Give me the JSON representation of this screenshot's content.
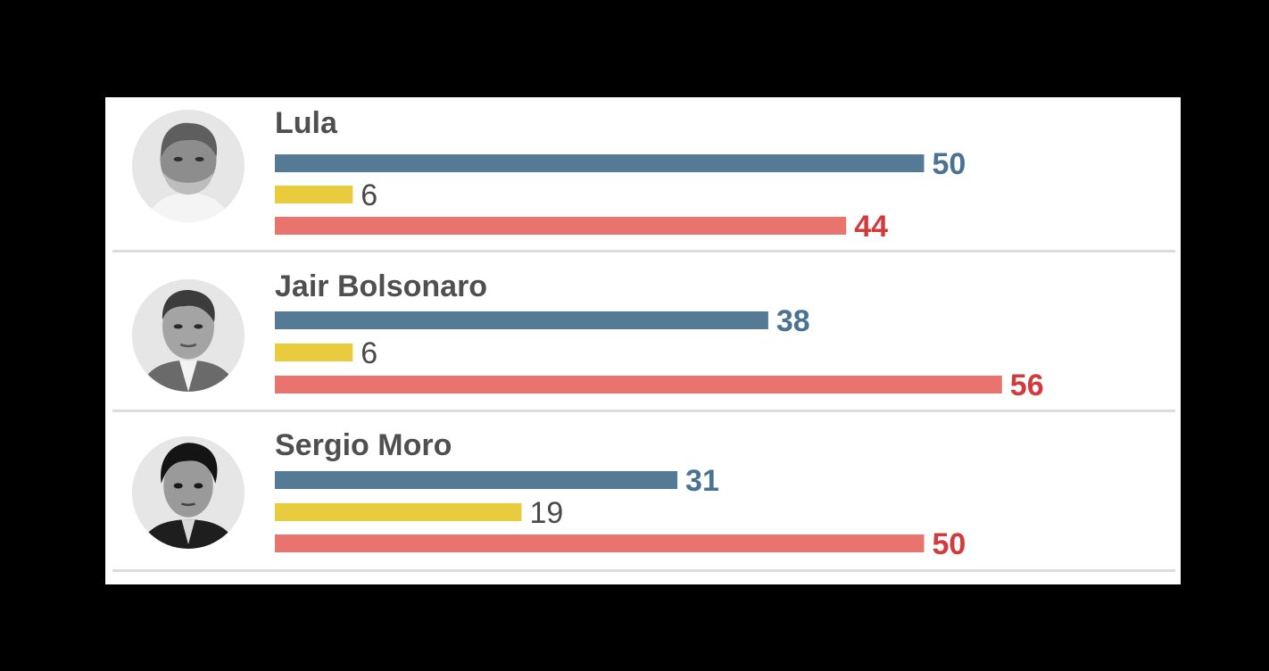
{
  "colors": {
    "series_1": "#557a96",
    "series_2": "#e9cb3e",
    "series_3": "#e8746d",
    "label_1": "#4a7393",
    "label_2": "#4a4a4a",
    "label_3": "#d23a3b"
  },
  "chart_data": {
    "type": "bar",
    "orientation": "horizontal",
    "categories": [
      "Lula",
      "Jair Bolsonaro",
      "Sergio Moro"
    ],
    "series": [
      {
        "values": [
          50,
          38,
          31
        ]
      },
      {
        "values": [
          6,
          6,
          19
        ]
      },
      {
        "values": [
          44,
          56,
          50
        ]
      }
    ],
    "xlim": [
      0,
      56
    ],
    "grid": false,
    "legend": "none"
  },
  "rows": [
    {
      "name": "Lula",
      "avatar_icon": "lula-portrait-icon"
    },
    {
      "name": "Jair Bolsonaro",
      "avatar_icon": "bolsonaro-portrait-icon"
    },
    {
      "name": "Sergio Moro",
      "avatar_icon": "moro-portrait-icon"
    }
  ]
}
